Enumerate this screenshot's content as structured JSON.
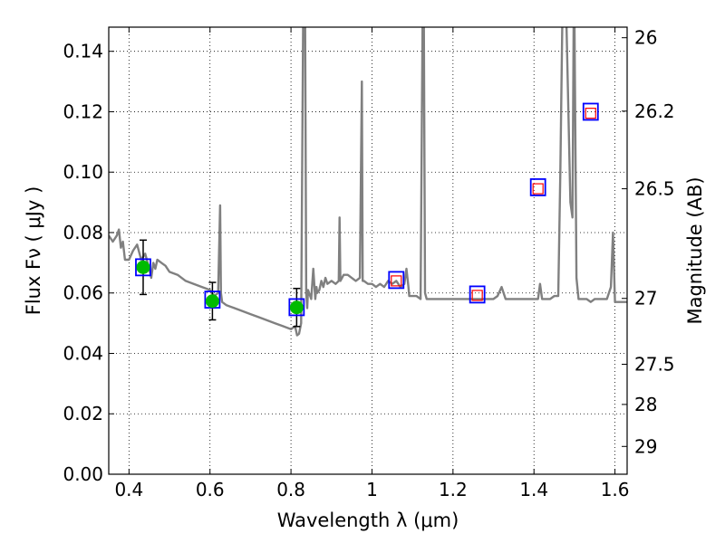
{
  "chart_data": {
    "type": "line",
    "xlabel": "Wavelength  λ (μm)",
    "ylabel_left": "Flux  Fν  ( μJy )",
    "ylabel_right": "Magnitude (AB)",
    "xlim": [
      0.35,
      1.63
    ],
    "ylim": [
      0,
      0.148
    ],
    "grid": true,
    "x_ticks": [
      0.4,
      0.6,
      0.8,
      1.0,
      1.2,
      1.4,
      1.6
    ],
    "x_tick_labels": [
      "0.4",
      "0.6",
      "0.8",
      "1",
      "1.2",
      "1.4",
      "1.6"
    ],
    "y_ticks": [
      0,
      0.02,
      0.04,
      0.06,
      0.08,
      0.1,
      0.12,
      0.14
    ],
    "y_tick_labels": [
      "0.00",
      "0.02",
      "0.04",
      "0.06",
      "0.08",
      "0.10",
      "0.12",
      "0.14"
    ],
    "right_ticks": [
      {
        "label": "26",
        "flux": 0.1445
      },
      {
        "label": "26.2",
        "flux": 0.1202
      },
      {
        "label": "26.5",
        "flux": 0.0945
      },
      {
        "label": "27",
        "flux": 0.0582
      },
      {
        "label": "27.5",
        "flux": 0.0364
      },
      {
        "label": "28",
        "flux": 0.0231
      },
      {
        "label": "29",
        "flux": 0.0092
      }
    ],
    "series": [
      {
        "role": "model spectrum",
        "color": "#808080",
        "x": [
          0.35,
          0.36,
          0.37,
          0.375,
          0.38,
          0.385,
          0.39,
          0.4,
          0.41,
          0.42,
          0.43,
          0.44,
          0.45,
          0.455,
          0.46,
          0.465,
          0.47,
          0.48,
          0.49,
          0.5,
          0.52,
          0.54,
          0.56,
          0.58,
          0.6,
          0.61,
          0.62,
          0.625,
          0.627,
          0.63,
          0.64,
          0.66,
          0.68,
          0.7,
          0.72,
          0.74,
          0.76,
          0.78,
          0.8,
          0.81,
          0.815,
          0.82,
          0.825,
          0.83,
          0.835,
          0.8375,
          0.84,
          0.842,
          0.85,
          0.855,
          0.86,
          0.863,
          0.865,
          0.87,
          0.875,
          0.88,
          0.885,
          0.89,
          0.9,
          0.91,
          0.918,
          0.92,
          0.922,
          0.93,
          0.94,
          0.96,
          0.97,
          0.975,
          0.977,
          0.98,
          0.99,
          1.0,
          1.01,
          1.02,
          1.03,
          1.04,
          1.05,
          1.06,
          1.07,
          1.08,
          1.085,
          1.09,
          1.092,
          1.1,
          1.11,
          1.12,
          1.125,
          1.128,
          1.131,
          1.135,
          1.14,
          1.16,
          1.18,
          1.2,
          1.22,
          1.24,
          1.26,
          1.28,
          1.3,
          1.31,
          1.32,
          1.33,
          1.34,
          1.36,
          1.38,
          1.4,
          1.41,
          1.415,
          1.42,
          1.43,
          1.44,
          1.45,
          1.46,
          1.465,
          1.47,
          1.48,
          1.49,
          1.495,
          1.498,
          1.5,
          1.505,
          1.51,
          1.52,
          1.53,
          1.54,
          1.55,
          1.56,
          1.58,
          1.59,
          1.595,
          1.6,
          1.605,
          1.61,
          1.62,
          1.63
        ],
        "y": [
          0.079,
          0.077,
          0.079,
          0.081,
          0.075,
          0.077,
          0.071,
          0.071,
          0.074,
          0.076,
          0.071,
          0.073,
          0.068,
          0.065,
          0.07,
          0.068,
          0.071,
          0.07,
          0.069,
          0.067,
          0.066,
          0.064,
          0.063,
          0.062,
          0.061,
          0.059,
          0.06,
          0.089,
          0.06,
          0.057,
          0.056,
          0.055,
          0.054,
          0.053,
          0.052,
          0.051,
          0.05,
          0.049,
          0.048,
          0.049,
          0.046,
          0.0465,
          0.05,
          0.15,
          0.15,
          0.06,
          0.055,
          0.061,
          0.058,
          0.068,
          0.058,
          0.062,
          0.06,
          0.061,
          0.064,
          0.062,
          0.065,
          0.063,
          0.064,
          0.063,
          0.064,
          0.085,
          0.064,
          0.066,
          0.066,
          0.064,
          0.065,
          0.13,
          0.064,
          0.064,
          0.063,
          0.063,
          0.062,
          0.063,
          0.062,
          0.064,
          0.063,
          0.064,
          0.062,
          0.063,
          0.068,
          0.062,
          0.059,
          0.059,
          0.059,
          0.058,
          0.15,
          0.15,
          0.06,
          0.058,
          0.058,
          0.058,
          0.058,
          0.058,
          0.058,
          0.058,
          0.058,
          0.058,
          0.058,
          0.059,
          0.062,
          0.058,
          0.058,
          0.058,
          0.058,
          0.058,
          0.058,
          0.063,
          0.058,
          0.058,
          0.058,
          0.059,
          0.059,
          0.1,
          0.15,
          0.15,
          0.09,
          0.085,
          0.15,
          0.15,
          0.065,
          0.058,
          0.058,
          0.058,
          0.057,
          0.058,
          0.058,
          0.058,
          0.062,
          0.08,
          0.057,
          0.057,
          0.057,
          0.057,
          0.057
        ]
      },
      {
        "role": "observed fluxes",
        "marker": "circle",
        "color": "#00bb00",
        "x": [
          0.435,
          0.606,
          0.814
        ],
        "y": [
          0.0685,
          0.0573,
          0.0552
        ],
        "yerr": [
          0.009,
          0.0062,
          0.0063
        ]
      },
      {
        "role": "model photometry",
        "marker": "square",
        "color": "#0000ff",
        "x": [
          0.435,
          0.606,
          0.814,
          1.06,
          1.26,
          1.41,
          1.54
        ],
        "y": [
          0.0685,
          0.0578,
          0.0553,
          0.0643,
          0.0595,
          0.095,
          0.12
        ]
      },
      {
        "role": "upper limits",
        "marker": "square-small",
        "color": "#ff0000",
        "x": [
          1.06,
          1.26,
          1.41,
          1.54
        ],
        "y": [
          0.064,
          0.0592,
          0.0945,
          0.1195
        ]
      }
    ]
  }
}
